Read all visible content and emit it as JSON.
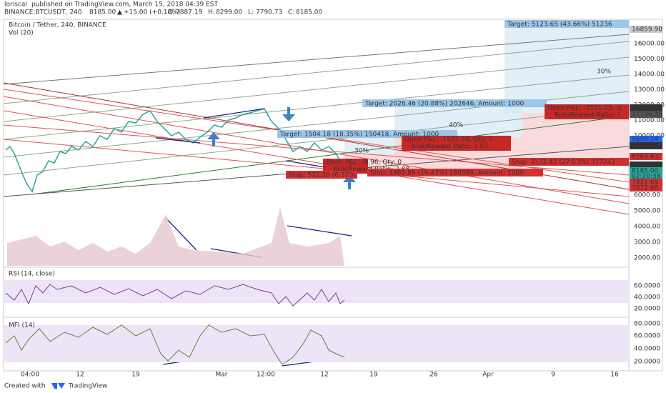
{
  "header": {
    "author": "loriscal",
    "published": "published on TradingView.com, March 15, 2018 04:39 EST",
    "symbol": "BINANCE:BTCUSDT, 240",
    "last": "8185.00",
    "arrow": "▲",
    "change": "+15.00 (+0.18%)",
    "ohlc": [
      {
        "label": "O:",
        "value": "7887.19"
      },
      {
        "label": "H:",
        "value": "8299.00"
      },
      {
        "label": "L:",
        "value": "7790.73"
      },
      {
        "label": "C:",
        "value": "8185.00"
      }
    ]
  },
  "legend": [
    "Bitcoin / Tether, 240, BINANCE",
    "Vol (20)"
  ],
  "price_axis": [
    "16000.00",
    "15000.00",
    "14000.00",
    "13000.00",
    "12000.00",
    "11000.00",
    "10000.00",
    "6000.00",
    "5000.00",
    "4000.00",
    "3000.00",
    "2000.00"
  ],
  "price_tags": [
    "16859.90",
    "11734.04",
    "11736.25",
    "9699.14",
    "9707.58",
    "8563.83",
    "8194.96",
    "8185.00",
    "02:20:38",
    "7821.69",
    "7672.68"
  ],
  "rsi": {
    "title": "RSI (14, close)",
    "axis": [
      "60.0000",
      "40.0000",
      "20.0000"
    ]
  },
  "mfi": {
    "title": "MFI (14)",
    "axis": [
      "80.0000",
      "60.0000",
      "40.0000",
      "20.0000"
    ]
  },
  "time_axis": [
    "04:00",
    "12",
    "19",
    "Mar",
    "12:00",
    "12",
    "19",
    "26",
    "Apr",
    "9",
    "16"
  ],
  "annotations": {
    "targets": [
      "Target: 5123.65 (43.66%) 51236",
      "Target: 2026.46 (20.88%) 202646, Amount: 1000",
      "Target: 1504.18 (18.35%) 150418, Amount: 1000"
    ],
    "pnl": [
      [
        "Open P&L: -3551.25, Q",
        "Risk/Reward Ratio: 1"
      ],
      [
        "Open P&L: -1522.58, Qty: 0",
        "Risk/Reward Ratio: 1.07"
      ],
      [
        "Open P&L: -9.96, Qty: 0",
        "Risk/Reward Ratio: 2.88"
      ]
    ],
    "stops": [
      "Stop: 3172.42 (27.03%) 317242",
      "Stop: 1885.89 (19.43%) 188589, Amount: 1000",
      "Stop: 522.28 (6.37%"
    ],
    "percents": [
      "30%",
      "40%",
      "30%"
    ]
  },
  "footer": {
    "created": "Created with",
    "brand": "TradingView"
  }
}
